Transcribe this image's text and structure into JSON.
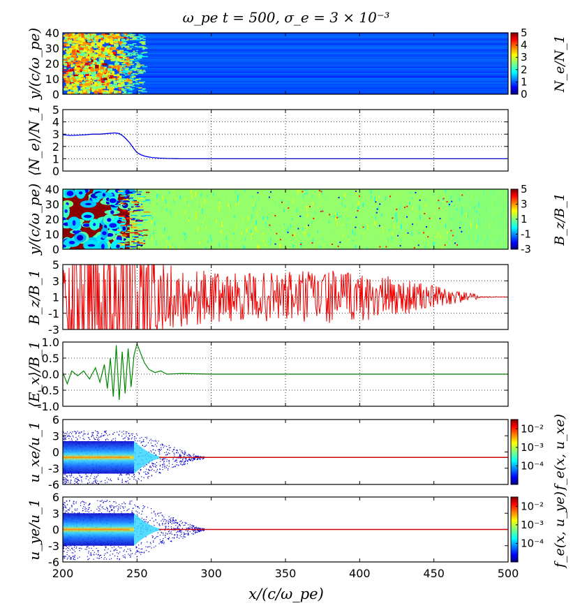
{
  "title": "ω_pe t = 500, σ_e = 3 × 10⁻³",
  "xlabel": "x/(c/ω_pe)",
  "x_ticks": [
    "200",
    "250",
    "300",
    "350",
    "400",
    "450",
    "500"
  ],
  "chart_data": [
    {
      "type": "heatmap",
      "ylabel": "y/(c/ω_pe)",
      "y_ticks": [
        "0",
        "10",
        "20",
        "30",
        "40"
      ],
      "ylim": [
        0,
        40
      ],
      "xlim": [
        200,
        500
      ],
      "colorbar": {
        "label": "N_e/N_1",
        "ticks": [
          "0",
          "1",
          "2",
          "3",
          "4",
          "5"
        ],
        "range": [
          0,
          5
        ],
        "colormap": "jet"
      },
      "description_values": {
        "upstream_density": 1,
        "downstream_density": 3
      }
    },
    {
      "type": "line",
      "ylabel": "⟨N_e⟩/N_1",
      "y_ticks": [
        "0",
        "1",
        "2",
        "3",
        "4",
        "5"
      ],
      "ylim": [
        0,
        5
      ],
      "xlim": [
        200,
        500
      ],
      "grid": true,
      "color": "#0000ee",
      "x": [
        200,
        205,
        210,
        215,
        220,
        225,
        230,
        235,
        238,
        240,
        242,
        245,
        248,
        250,
        253,
        256,
        260,
        265,
        270,
        280,
        300,
        350,
        400,
        450,
        500
      ],
      "y": [
        2.95,
        2.9,
        2.92,
        2.95,
        3.0,
        3.0,
        3.05,
        3.1,
        3.05,
        2.9,
        2.7,
        2.3,
        1.8,
        1.5,
        1.3,
        1.18,
        1.1,
        1.05,
        1.02,
        1.0,
        1.0,
        1.0,
        1.0,
        1.0,
        1.0
      ]
    },
    {
      "type": "heatmap",
      "ylabel": "y/(c/ω_pe)",
      "y_ticks": [
        "0",
        "10",
        "20",
        "30",
        "40"
      ],
      "ylim": [
        0,
        40
      ],
      "xlim": [
        200,
        500
      ],
      "colorbar": {
        "label": "B_z/B_1",
        "ticks": [
          "-3",
          "-1",
          "1",
          "3",
          "5"
        ],
        "range": [
          -3,
          5
        ],
        "colormap": "jet"
      }
    },
    {
      "type": "line",
      "ylabel": "B_z/B_1",
      "y_ticks": [
        "-3",
        "-1",
        "1",
        "3",
        "5"
      ],
      "ylim": [
        -3,
        5
      ],
      "xlim": [
        200,
        500
      ],
      "grid": true,
      "color": "#ee0000",
      "baseline": 1,
      "envelope": [
        [
          200,
          3.5
        ],
        [
          220,
          4.0
        ],
        [
          240,
          5.0
        ],
        [
          255,
          4.5
        ],
        [
          270,
          2.5
        ],
        [
          300,
          2.0
        ],
        [
          330,
          1.8
        ],
        [
          360,
          2.2
        ],
        [
          390,
          2.0
        ],
        [
          420,
          1.6
        ],
        [
          450,
          0.9
        ],
        [
          470,
          0.4
        ],
        [
          478,
          0.25
        ],
        [
          480,
          0.05
        ],
        [
          500,
          0.02
        ]
      ]
    },
    {
      "type": "line",
      "ylabel": "⟨E_x⟩/B_1",
      "y_ticks": [
        "-1.0",
        "-0.5",
        "0.0",
        "0.5",
        "1.0"
      ],
      "ylim": [
        -1.0,
        1.0
      ],
      "xlim": [
        200,
        500
      ],
      "grid": true,
      "color": "#008800",
      "x": [
        200,
        203,
        206,
        210,
        214,
        218,
        222,
        225,
        228,
        230,
        232,
        234,
        236,
        238,
        240,
        242,
        244,
        246,
        248,
        250,
        252,
        255,
        258,
        262,
        266,
        270,
        280,
        300,
        350,
        400,
        450,
        500
      ],
      "y": [
        0.05,
        -0.3,
        0.1,
        -0.05,
        0.1,
        -0.15,
        0.2,
        -0.25,
        0.3,
        -0.45,
        0.5,
        -0.7,
        0.9,
        -0.8,
        0.7,
        -0.6,
        0.8,
        -0.4,
        0.6,
        0.95,
        0.7,
        0.35,
        0.15,
        0.05,
        0.1,
        0.0,
        0.02,
        0.0,
        0.0,
        0.0,
        0.0,
        0.0
      ]
    },
    {
      "type": "heatmap",
      "ylabel": "u_xe/u_1",
      "y_ticks": [
        "-6",
        "-3",
        "0",
        "3",
        "6"
      ],
      "ylim": [
        -6,
        6
      ],
      "xlim": [
        200,
        500
      ],
      "colorbar": {
        "label": "f_e(x, u_xe)",
        "ticks": [
          "10⁻²",
          "10⁻³",
          "10⁻⁴"
        ],
        "log_range": [
          -5,
          -1.5
        ],
        "colormap": "jet"
      }
    },
    {
      "type": "heatmap",
      "ylabel": "u_ye/u_1",
      "y_ticks": [
        "-6",
        "-3",
        "0",
        "3",
        "6"
      ],
      "ylim": [
        -6,
        6
      ],
      "xlim": [
        200,
        500
      ],
      "colorbar": {
        "label": "f_e(x, u_ye)",
        "ticks": [
          "10⁻²",
          "10⁻³",
          "10⁻⁴"
        ],
        "log_range": [
          -5,
          -1.5
        ],
        "colormap": "jet"
      }
    }
  ]
}
